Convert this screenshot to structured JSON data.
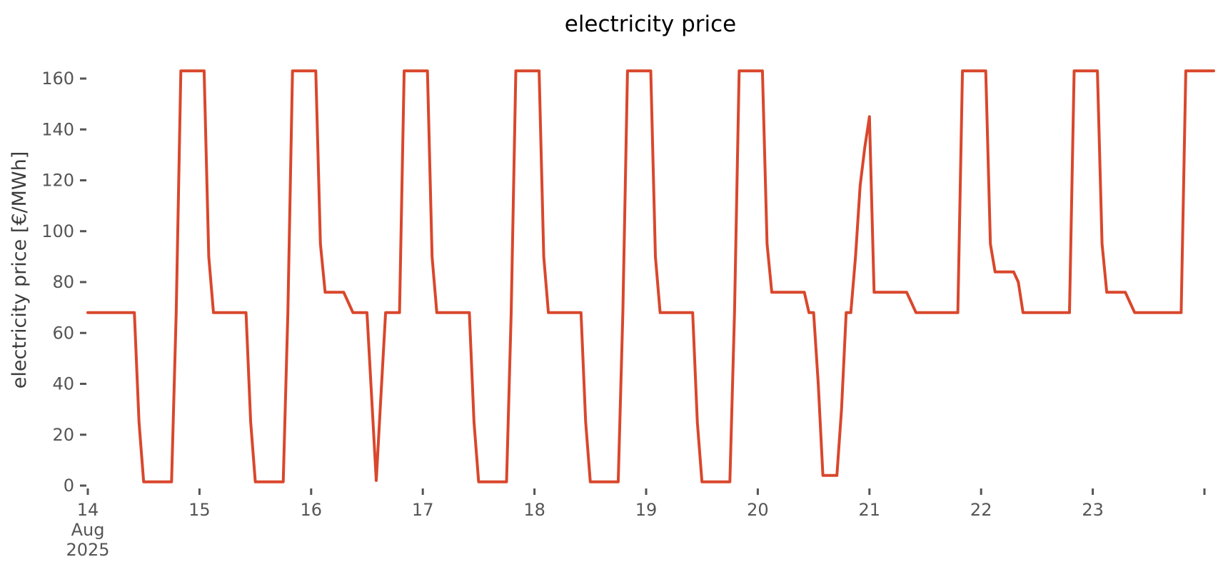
{
  "chart_data": {
    "type": "line",
    "title": "electricity price",
    "ylabel": "electricity price [€/MWh]",
    "xlabel": "",
    "series_name": "electricity price",
    "unit": "€/MWh",
    "line_color": "#d9472c",
    "axis_color": "#555555",
    "background_color": "#ffffff",
    "grid": false,
    "legend_position": "none",
    "start": "2025-08-14 00:00",
    "freq_hours": 1,
    "ylim": [
      -1,
      170
    ],
    "yticks": [
      0,
      20,
      40,
      60,
      80,
      100,
      120,
      140,
      160
    ],
    "xticks": [
      {
        "day": 0,
        "label": "14"
      },
      {
        "day": 1,
        "label": "15"
      },
      {
        "day": 2,
        "label": "16"
      },
      {
        "day": 3,
        "label": "17"
      },
      {
        "day": 4,
        "label": "18"
      },
      {
        "day": 5,
        "label": "19"
      },
      {
        "day": 6,
        "label": "20"
      },
      {
        "day": 7,
        "label": "21"
      },
      {
        "day": 8,
        "label": "22"
      },
      {
        "day": 9,
        "label": "23"
      },
      {
        "day": 10,
        "label": ""
      }
    ],
    "first_tick_month_label": "Aug",
    "first_tick_year_label": "2025",
    "values": [
      68,
      68,
      68,
      68,
      68,
      68,
      68,
      68,
      68,
      68,
      68,
      25,
      1.5,
      1.5,
      1.5,
      1.5,
      1.5,
      1.5,
      1.5,
      68,
      163,
      163,
      163,
      163,
      163,
      163,
      90,
      68,
      68,
      68,
      68,
      68,
      68,
      68,
      68,
      25,
      1.5,
      1.5,
      1.5,
      1.5,
      1.5,
      1.5,
      1.5,
      68,
      163,
      163,
      163,
      163,
      163,
      163,
      95,
      76,
      76,
      76,
      76,
      76,
      72,
      68,
      68,
      68,
      68,
      35,
      2,
      35,
      68,
      68,
      68,
      68,
      163,
      163,
      163,
      163,
      163,
      163,
      90,
      68,
      68,
      68,
      68,
      68,
      68,
      68,
      68,
      25,
      1.5,
      1.5,
      1.5,
      1.5,
      1.5,
      1.5,
      1.5,
      68,
      163,
      163,
      163,
      163,
      163,
      163,
      90,
      68,
      68,
      68,
      68,
      68,
      68,
      68,
      68,
      25,
      1.5,
      1.5,
      1.5,
      1.5,
      1.5,
      1.5,
      1.5,
      68,
      163,
      163,
      163,
      163,
      163,
      163,
      90,
      68,
      68,
      68,
      68,
      68,
      68,
      68,
      68,
      25,
      1.5,
      1.5,
      1.5,
      1.5,
      1.5,
      1.5,
      1.5,
      68,
      163,
      163,
      163,
      163,
      163,
      163,
      95,
      76,
      76,
      76,
      76,
      76,
      76,
      76,
      76,
      68,
      68,
      40,
      4,
      4,
      4,
      4,
      30,
      68,
      68,
      90,
      118,
      133,
      145,
      76,
      76,
      76,
      76,
      76,
      76,
      76,
      76,
      72,
      68,
      68,
      68,
      68,
      68,
      68,
      68,
      68,
      68,
      68,
      163,
      163,
      163,
      163,
      163,
      163,
      95,
      84,
      84,
      84,
      84,
      84,
      80,
      68,
      68,
      68,
      68,
      68,
      68,
      68,
      68,
      68,
      68,
      68,
      163,
      163,
      163,
      163,
      163,
      163,
      95,
      76,
      76,
      76,
      76,
      76,
      72,
      68,
      68,
      68,
      68,
      68,
      68,
      68,
      68,
      68,
      68,
      68,
      163,
      163,
      163,
      163,
      163,
      163,
      163
    ]
  }
}
